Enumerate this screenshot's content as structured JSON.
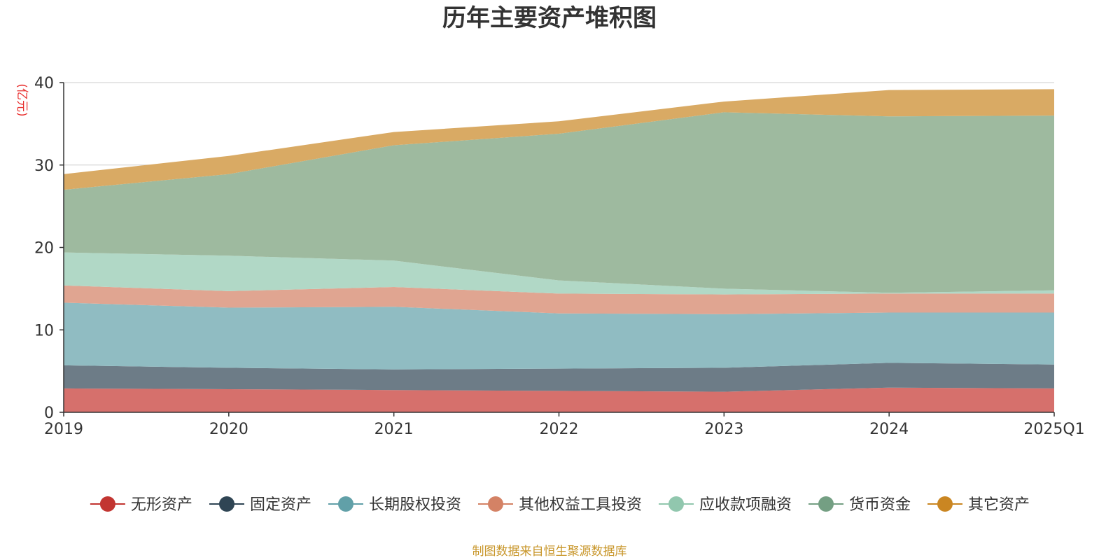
{
  "chart_data": {
    "type": "area",
    "stacked": true,
    "title": "历年主要资产堆积图",
    "ylabel": "(亿元)",
    "xlabel": "",
    "ylim": [
      0,
      40
    ],
    "yticks": [
      0,
      10,
      20,
      30,
      40
    ],
    "grid": true,
    "legend_position": "bottom",
    "source": "制图数据来自恒生聚源数据库",
    "categories": [
      "2019",
      "2020",
      "2021",
      "2022",
      "2023",
      "2024",
      "2025Q1"
    ],
    "series": [
      {
        "name": "无形资产",
        "color": "#c23531",
        "fill": "#d6706c",
        "values": [
          2.9,
          2.8,
          2.7,
          2.6,
          2.5,
          3.0,
          2.9
        ]
      },
      {
        "name": "固定资产",
        "color": "#2f4554",
        "fill": "#6d7c87",
        "values": [
          2.8,
          2.6,
          2.5,
          2.7,
          2.9,
          3.0,
          2.9
        ]
      },
      {
        "name": "长期股权投资",
        "color": "#61a0a8",
        "fill": "#90bcc2",
        "values": [
          7.6,
          7.3,
          7.6,
          6.7,
          6.5,
          6.1,
          6.3
        ]
      },
      {
        "name": "其他权益工具投资",
        "color": "#d48265",
        "fill": "#e0a591",
        "values": [
          2.1,
          2.0,
          2.4,
          2.4,
          2.4,
          2.3,
          2.3
        ]
      },
      {
        "name": "应收款项融资",
        "color": "#91c7ae",
        "fill": "#b1d8c6",
        "values": [
          4.0,
          4.3,
          3.2,
          1.6,
          0.7,
          0.1,
          0.4
        ]
      },
      {
        "name": "货币资金",
        "color": "#749f83",
        "fill": "#9eba9f",
        "values": [
          7.6,
          9.9,
          14.0,
          17.8,
          21.4,
          21.4,
          21.2
        ]
      },
      {
        "name": "其它资产",
        "color": "#ca8622",
        "fill": "#d9aa64",
        "values": [
          1.9,
          2.2,
          1.6,
          1.5,
          1.3,
          3.2,
          3.2
        ]
      }
    ]
  }
}
